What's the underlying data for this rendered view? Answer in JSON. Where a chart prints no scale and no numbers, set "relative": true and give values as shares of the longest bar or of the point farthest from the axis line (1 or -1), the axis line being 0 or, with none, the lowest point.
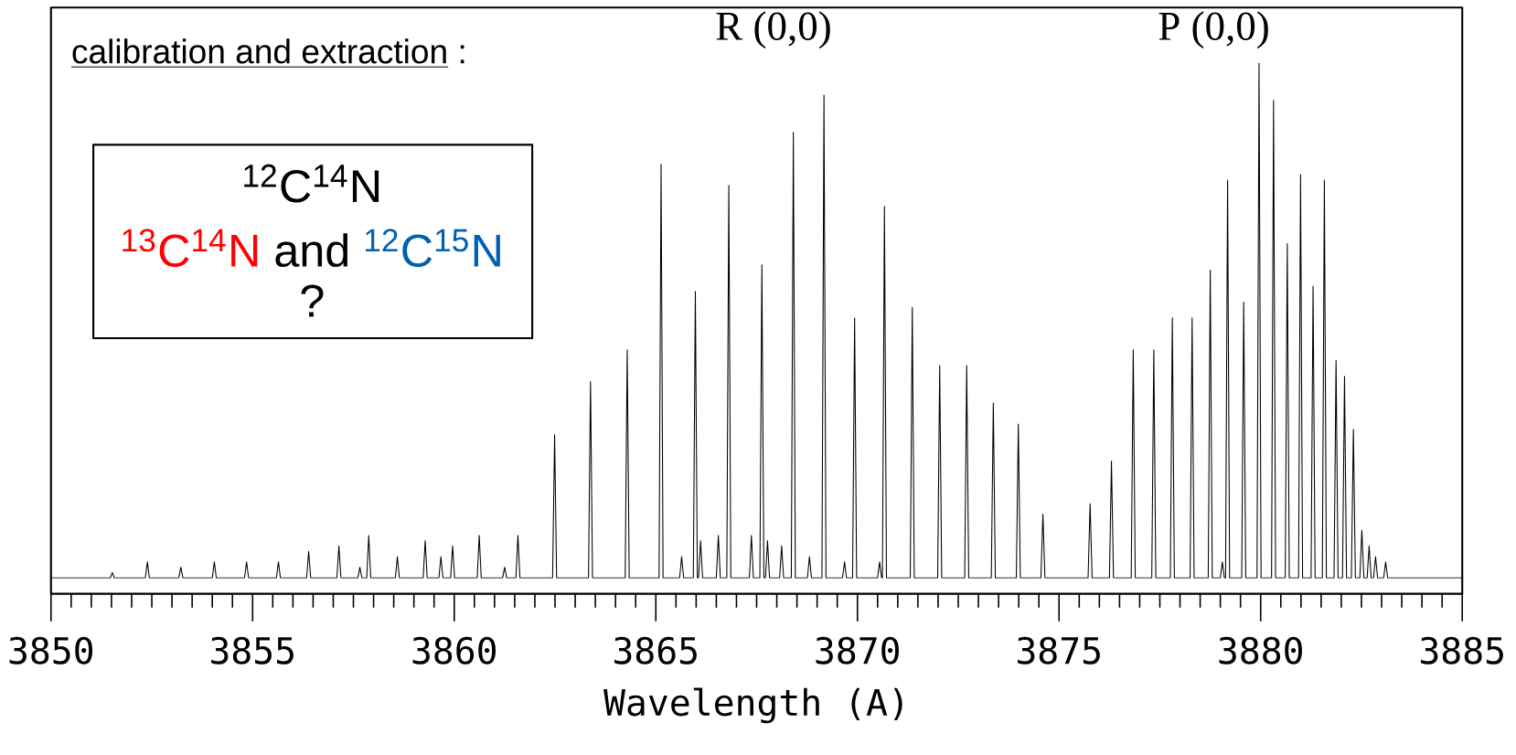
{
  "chart_data": {
    "type": "line",
    "relative": true,
    "xlabel": "Wavelength (A)",
    "xlim": [
      3850,
      3885
    ],
    "xticks": [
      3850,
      3855,
      3860,
      3865,
      3870,
      3875,
      3880,
      3885
    ],
    "tick_labels": "x",
    "marker": "none",
    "line_style": "solid",
    "grid": false,
    "annotations": [
      "calibration and extraction",
      ":",
      "R (0,0)",
      "P (0,0)",
      "$^{12}$C$^{14}$N",
      "$^{13}$C$^{14}$N",
      "and",
      "$^{12}$C$^{15}$N",
      "?"
    ],
    "series": [
      {
        "color": "#000000",
        "x": [
          3850,
          3851.47,
          3851.52,
          3851.57,
          3852.34,
          3852.39,
          3852.44,
          3853.17,
          3853.22,
          3853.27,
          3854.0,
          3854.05,
          3854.1,
          3854.8,
          3854.85,
          3854.9,
          3855.59,
          3855.64,
          3855.69,
          3856.34,
          3856.39,
          3856.44,
          3857.09,
          3857.14,
          3857.19,
          3857.61,
          3857.66,
          3857.71,
          3857.83,
          3857.88,
          3857.93,
          3858.54,
          3858.59,
          3858.64,
          3859.23,
          3859.28,
          3859.33,
          3859.62,
          3859.67,
          3859.72,
          3859.91,
          3859.96,
          3860.01,
          3860.57,
          3860.62,
          3860.67,
          3861.2,
          3861.25,
          3861.3,
          3861.53,
          3861.58,
          3861.63,
          3862.44,
          3862.49,
          3862.54,
          3863.33,
          3863.38,
          3863.43,
          3864.24,
          3864.29,
          3864.34,
          3865.08,
          3865.13,
          3865.18,
          3865.59,
          3865.64,
          3865.69,
          3865.93,
          3865.98,
          3866.03,
          3866.06,
          3866.11,
          3866.16,
          3866.5,
          3866.55,
          3866.6,
          3866.76,
          3866.81,
          3866.86,
          3867.32,
          3867.37,
          3867.42,
          3867.58,
          3867.63,
          3867.68,
          3867.72,
          3867.77,
          3867.82,
          3868.07,
          3868.12,
          3868.17,
          3868.36,
          3868.41,
          3868.46,
          3868.76,
          3868.81,
          3868.86,
          3869.12,
          3869.17,
          3869.22,
          3869.63,
          3869.68,
          3869.73,
          3869.88,
          3869.93,
          3869.98,
          3870.5,
          3870.55,
          3870.6,
          3870.62,
          3870.67,
          3870.72,
          3871.31,
          3871.36,
          3871.41,
          3871.99,
          3872.04,
          3872.09,
          3872.66,
          3872.71,
          3872.76,
          3873.32,
          3873.37,
          3873.42,
          3873.94,
          3873.99,
          3874.04,
          3874.55,
          3874.6,
          3874.65,
          3875.72,
          3875.77,
          3875.82,
          3876.25,
          3876.3,
          3876.35,
          3876.79,
          3876.84,
          3876.89,
          3877.3,
          3877.35,
          3877.4,
          3877.76,
          3877.81,
          3877.86,
          3878.25,
          3878.3,
          3878.35,
          3878.7,
          3878.75,
          3878.8,
          3879.0,
          3879.05,
          3879.1,
          3879.13,
          3879.18,
          3879.23,
          3879.53,
          3879.58,
          3879.63,
          3879.91,
          3879.96,
          3880.01,
          3880.27,
          3880.32,
          3880.37,
          3880.61,
          3880.66,
          3880.71,
          3880.94,
          3880.99,
          3881.04,
          3881.25,
          3881.3,
          3881.35,
          3881.53,
          3881.58,
          3881.63,
          3881.82,
          3881.87,
          3881.92,
          3882.03,
          3882.08,
          3882.13,
          3882.25,
          3882.3,
          3882.35,
          3882.46,
          3882.51,
          3882.56,
          3882.64,
          3882.69,
          3882.74,
          3882.8,
          3882.85,
          3882.9,
          3883.05,
          3883.1,
          3883.15,
          3885
        ],
        "values": [
          0.03,
          0.03,
          0.04,
          0.03,
          0.03,
          0.06,
          0.03,
          0.03,
          0.05,
          0.03,
          0.03,
          0.06,
          0.03,
          0.03,
          0.06,
          0.03,
          0.03,
          0.06,
          0.03,
          0.03,
          0.08,
          0.03,
          0.03,
          0.09,
          0.03,
          0.03,
          0.05,
          0.03,
          0.03,
          0.11,
          0.03,
          0.03,
          0.07,
          0.03,
          0.03,
          0.1,
          0.03,
          0.03,
          0.07,
          0.03,
          0.03,
          0.09,
          0.03,
          0.03,
          0.11,
          0.03,
          0.03,
          0.05,
          0.03,
          0.03,
          0.11,
          0.03,
          0.03,
          0.3,
          0.03,
          0.03,
          0.4,
          0.03,
          0.03,
          0.46,
          0.03,
          0.03,
          0.81,
          0.03,
          0.03,
          0.07,
          0.03,
          0.03,
          0.57,
          0.03,
          0.03,
          0.1,
          0.03,
          0.03,
          0.11,
          0.03,
          0.03,
          0.77,
          0.03,
          0.03,
          0.11,
          0.03,
          0.03,
          0.62,
          0.03,
          0.03,
          0.1,
          0.03,
          0.03,
          0.09,
          0.03,
          0.03,
          0.87,
          0.03,
          0.03,
          0.07,
          0.03,
          0.03,
          0.94,
          0.03,
          0.03,
          0.06,
          0.03,
          0.03,
          0.52,
          0.03,
          0.03,
          0.06,
          0.03,
          0.03,
          0.73,
          0.03,
          0.03,
          0.54,
          0.03,
          0.03,
          0.43,
          0.03,
          0.03,
          0.43,
          0.03,
          0.03,
          0.36,
          0.03,
          0.03,
          0.32,
          0.03,
          0.03,
          0.15,
          0.03,
          0.03,
          0.17,
          0.03,
          0.03,
          0.25,
          0.03,
          0.03,
          0.46,
          0.03,
          0.03,
          0.46,
          0.03,
          0.03,
          0.52,
          0.03,
          0.03,
          0.52,
          0.03,
          0.03,
          0.61,
          0.03,
          0.03,
          0.06,
          0.03,
          0.03,
          0.78,
          0.03,
          0.03,
          0.55,
          0.03,
          0.03,
          1,
          0.03,
          0.03,
          0.93,
          0.03,
          0.03,
          0.66,
          0.03,
          0.03,
          0.79,
          0.03,
          0.03,
          0.58,
          0.03,
          0.03,
          0.78,
          0.03,
          0.03,
          0.44,
          0.03,
          0.03,
          0.41,
          0.03,
          0.03,
          0.31,
          0.03,
          0.03,
          0.12,
          0.03,
          0.03,
          0.09,
          0.03,
          0.03,
          0.07,
          0.03,
          0.03,
          0.06,
          0.03,
          0.03
        ]
      }
    ]
  }
}
